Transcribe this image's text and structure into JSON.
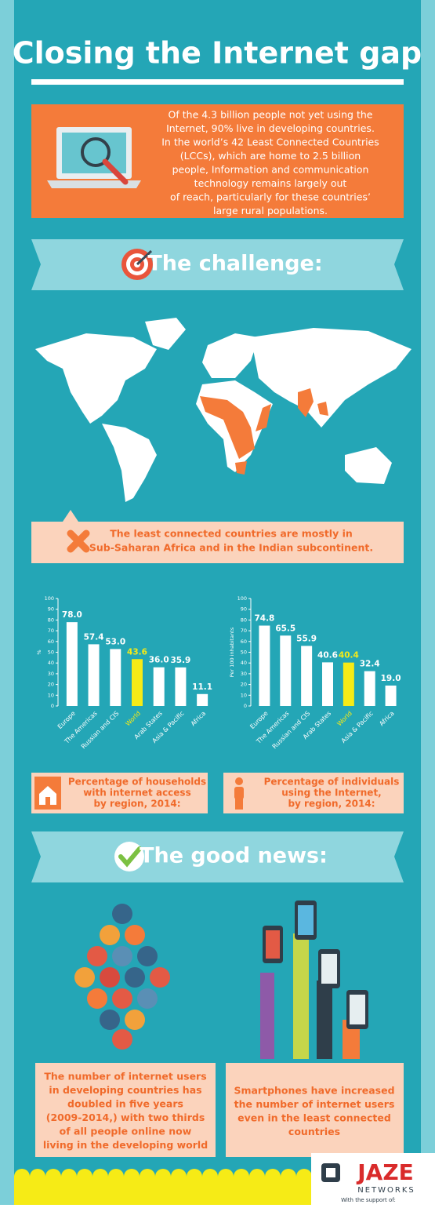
{
  "header": {
    "title": "Closing the Internet gap"
  },
  "intro": {
    "lines": [
      "Of the 4.3 billion people not yet using the",
      "Internet, 90% live in developing countries.",
      "In the world’s 42 Least Connected Countries",
      "(LCCs), which are home to 2.5 billion",
      "people, Information and communication",
      "technology remains largely out",
      "of reach, particularly for these countries’",
      "large rural populations."
    ]
  },
  "challenge": {
    "title": "The challenge:",
    "map_caption": [
      "The least connected countries are mostly in",
      "Sub-Saharan Africa and in the Indian subcontinent."
    ]
  },
  "chart_data": [
    {
      "type": "bar",
      "title": [
        "Percentage of households",
        "with internet access",
        "by region, 2014:"
      ],
      "y_label": "%",
      "categories": [
        "Europe",
        "The Americas",
        "Russian and CIS",
        "World",
        "Arab States",
        "Asia & Pacific",
        "Africa"
      ],
      "values": [
        78.0,
        57.4,
        53.0,
        43.6,
        36.0,
        35.9,
        11.1
      ],
      "value_labels": [
        "78.0",
        "57.4",
        "53.0",
        "43.6",
        "36.0",
        "35.9",
        "11.1"
      ],
      "colors": [
        "#ffffff",
        "#ffffff",
        "#ffffff",
        "#f6eb16",
        "#ffffff",
        "#ffffff",
        "#ffffff"
      ],
      "ylim": [
        0,
        100
      ],
      "yticks": [
        0,
        10,
        20,
        30,
        40,
        50,
        60,
        70,
        80,
        90,
        100
      ]
    },
    {
      "type": "bar",
      "title": [
        "Percentage of individuals",
        "using the Internet,",
        "by region, 2014:"
      ],
      "y_label": "Per 100 inhabitants",
      "categories": [
        "Europe",
        "The Americas",
        "Russian and CIS",
        "Arab States",
        "World",
        "Asia & Pacific",
        "Africa"
      ],
      "values": [
        74.8,
        65.5,
        55.9,
        40.6,
        40.4,
        32.4,
        19.0
      ],
      "value_labels": [
        "74.8",
        "65.5",
        "55.9",
        "40.6",
        "40.4",
        "32.4",
        "19.0"
      ],
      "colors": [
        "#ffffff",
        "#ffffff",
        "#ffffff",
        "#ffffff",
        "#f6eb16",
        "#ffffff",
        "#ffffff"
      ],
      "ylim": [
        0,
        100
      ],
      "yticks": [
        0,
        10,
        20,
        30,
        40,
        50,
        60,
        70,
        80,
        90,
        100
      ]
    }
  ],
  "good_news": {
    "title": "The good news:",
    "captions": [
      [
        "The number of internet users",
        "in developing countries has",
        "doubled in five years",
        "(2009-2014,) with two thirds",
        "of all people online now",
        "living in the developing world"
      ],
      [
        "Smartphones have increased",
        "the number of internet users",
        "even in the least connected",
        "countries"
      ]
    ]
  },
  "logo": {
    "name": "JAZE",
    "sub": "NETWORKS",
    "support": "With the support of:"
  }
}
